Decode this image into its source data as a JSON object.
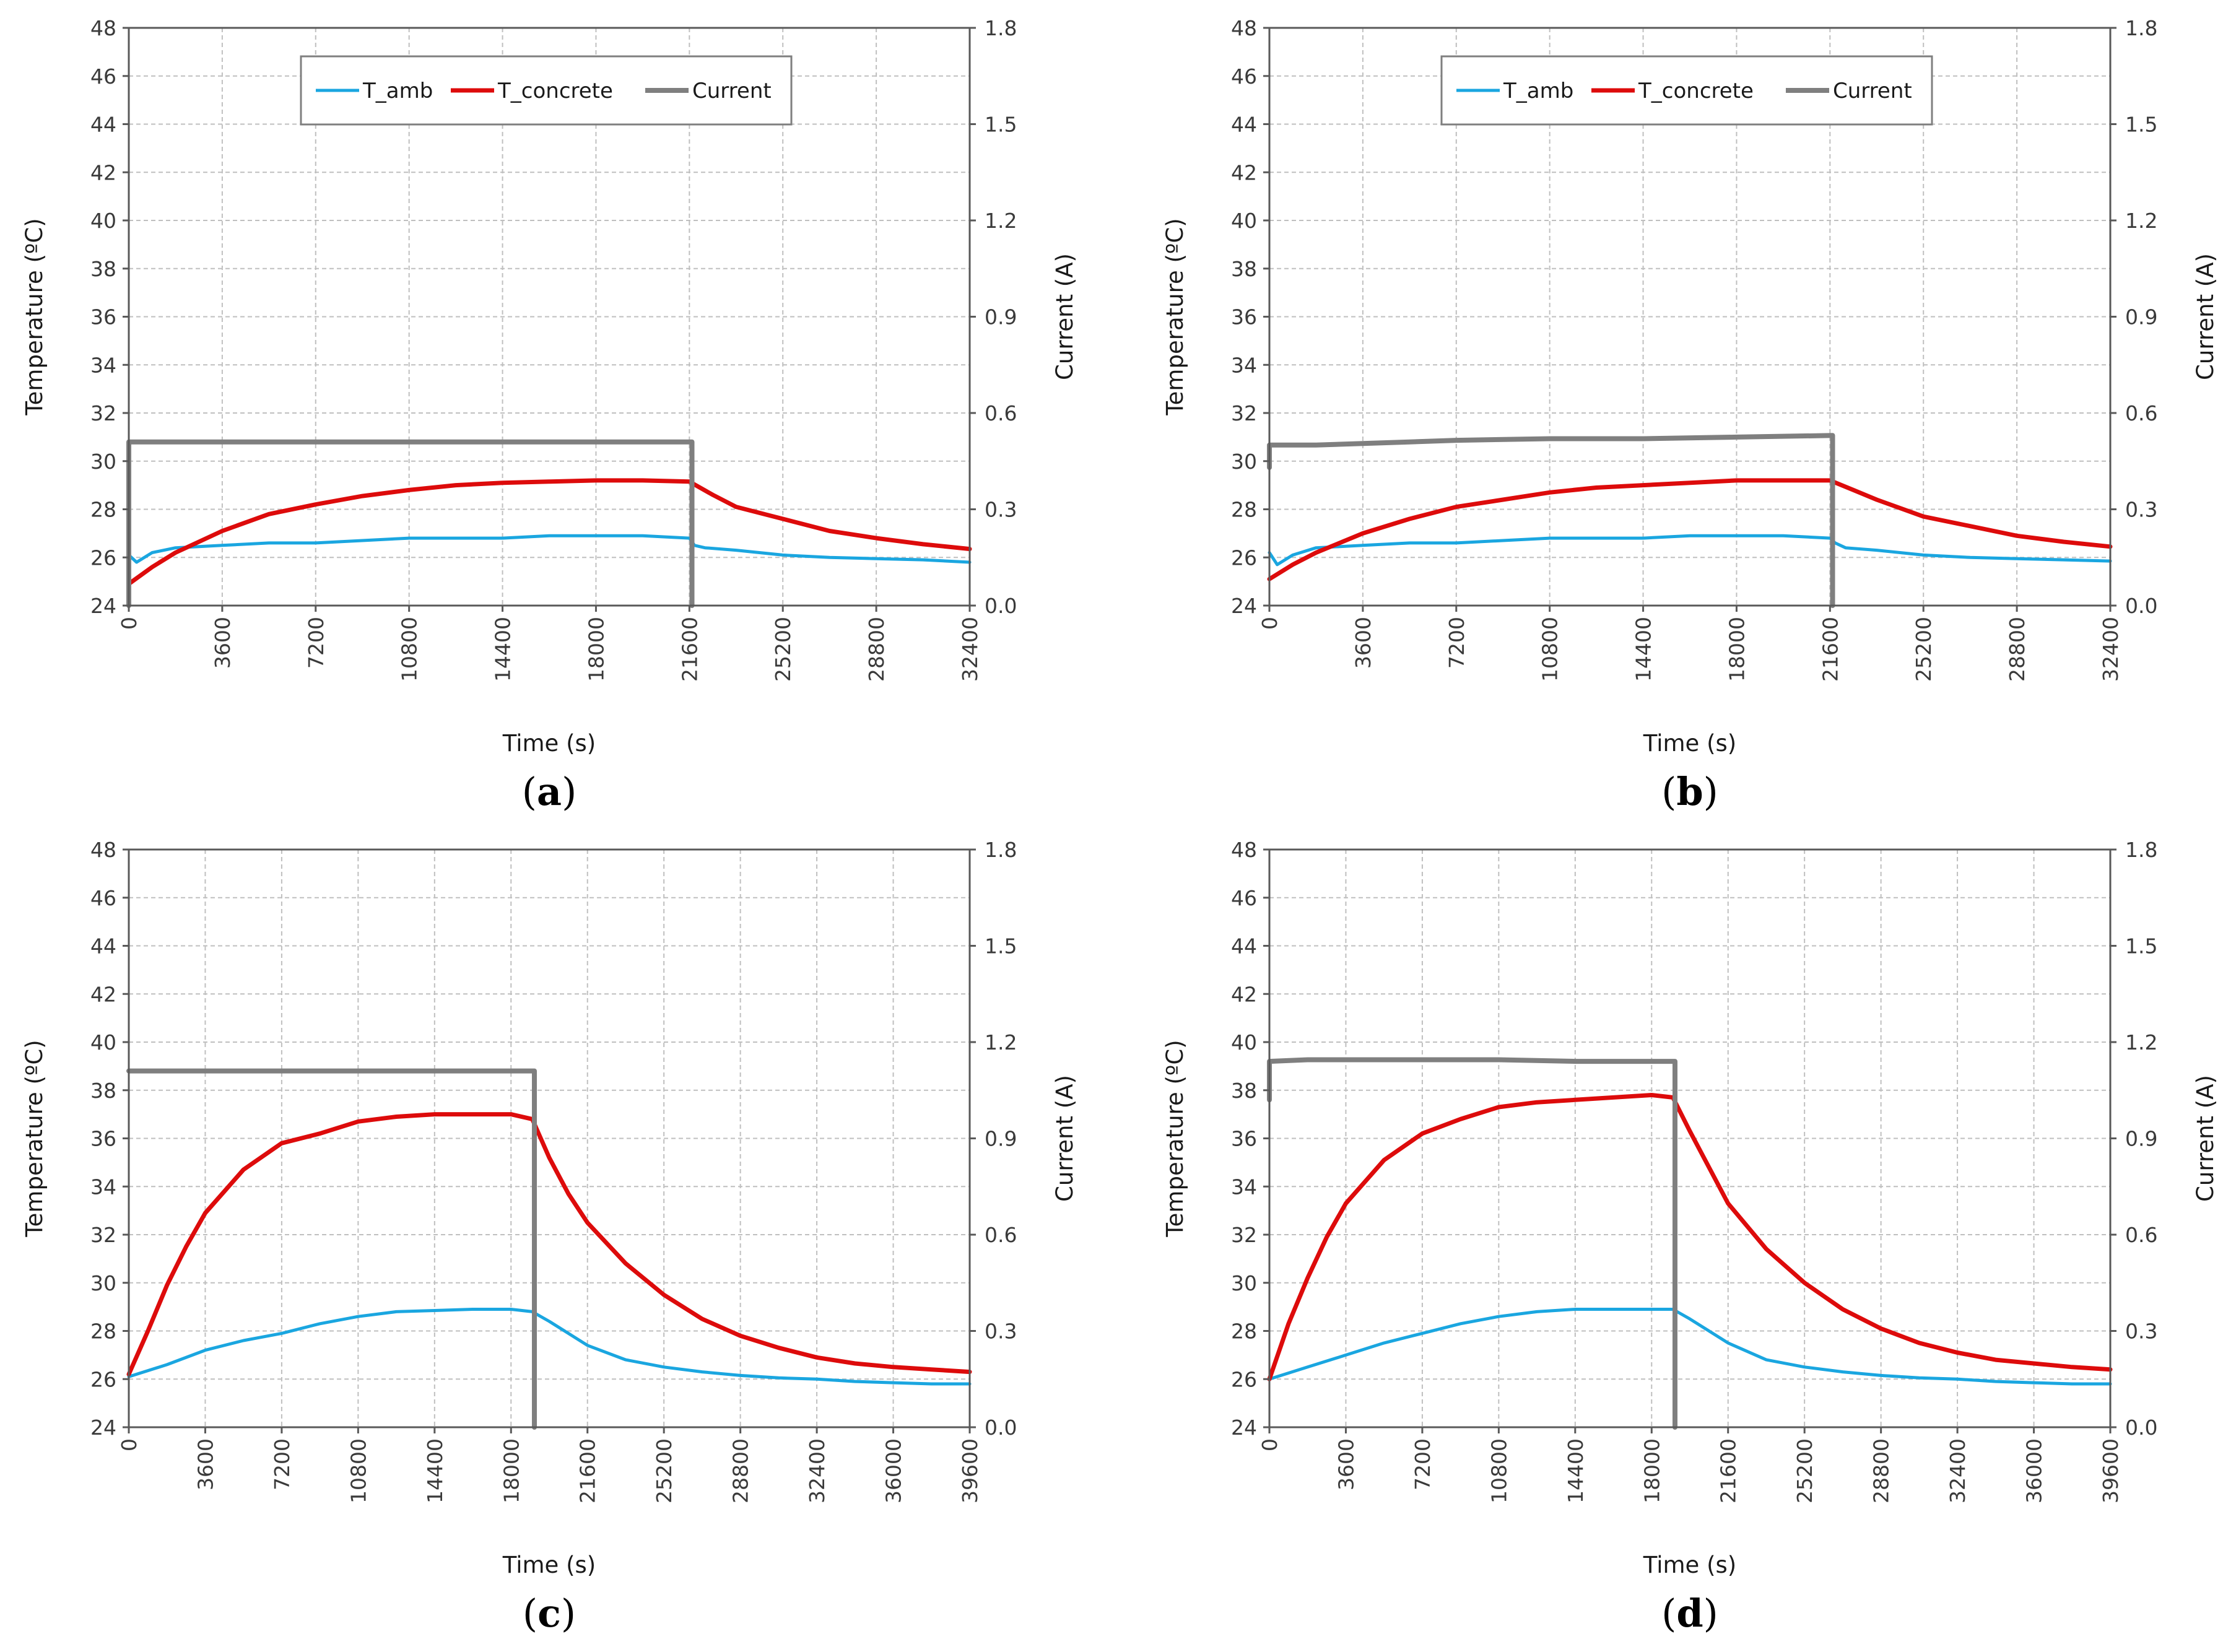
{
  "figure": {
    "colors": {
      "T_amb": "#1aa6e0",
      "T_concrete": "#dd0b0b",
      "Current": "#7f7f7f",
      "grid": "#bfbfbf",
      "axis": "#595959"
    }
  },
  "chart_data": [
    {
      "id": "a",
      "type": "line",
      "caption": {
        "open": "(",
        "letter": "a",
        "close": ")"
      },
      "xlabel": "Time (s)",
      "ylabel": "Temperature (ºC)",
      "y2label": "Current (A)",
      "xlim": [
        0,
        32400
      ],
      "xticks": [
        0,
        3600,
        7200,
        10800,
        14400,
        18000,
        21600,
        25200,
        28800,
        32400
      ],
      "xtick_labels": [
        "0",
        "3600",
        "7200",
        "10800",
        "14400",
        "18000",
        "21600",
        "25200",
        "28800",
        "32400"
      ],
      "ylim": [
        24,
        48
      ],
      "yticks": [
        24,
        26,
        28,
        30,
        32,
        34,
        36,
        38,
        40,
        42,
        44,
        46,
        48
      ],
      "ytick_labels": [
        "24",
        "26",
        "28",
        "30",
        "32",
        "34",
        "36",
        "38",
        "40",
        "42",
        "44",
        "46",
        "48"
      ],
      "y2lim": [
        0,
        1.8
      ],
      "y2ticks": [
        0,
        0.3,
        0.6,
        0.9,
        1.2,
        1.5,
        1.8
      ],
      "y2tick_labels": [
        "0.0",
        "0.3",
        "0.6",
        "0.9",
        "1.2",
        "1.5",
        "1.8"
      ],
      "grid": true,
      "legend": {
        "position": "top",
        "entries": [
          "T_amb",
          "T_concrete",
          "Current"
        ]
      },
      "series": [
        {
          "name": "T_amb",
          "axis": "left",
          "x": [
            0,
            300,
            900,
            1800,
            3600,
            5400,
            7200,
            9000,
            10800,
            12600,
            14400,
            16200,
            18000,
            19800,
            21600,
            21800,
            22200,
            23400,
            25200,
            27000,
            28800,
            30600,
            32400
          ],
          "y": [
            26.1,
            25.8,
            26.2,
            26.4,
            26.5,
            26.6,
            26.6,
            26.7,
            26.8,
            26.8,
            26.8,
            26.9,
            26.9,
            26.9,
            26.8,
            26.5,
            26.4,
            26.3,
            26.1,
            26.0,
            25.95,
            25.9,
            25.8
          ]
        },
        {
          "name": "T_concrete",
          "axis": "left",
          "x": [
            0,
            900,
            1800,
            3600,
            5400,
            7200,
            9000,
            10800,
            12600,
            14400,
            16200,
            18000,
            19800,
            21600,
            22500,
            23400,
            25200,
            27000,
            28800,
            30600,
            32400
          ],
          "y": [
            24.9,
            25.6,
            26.2,
            27.1,
            27.8,
            28.2,
            28.55,
            28.8,
            29.0,
            29.1,
            29.15,
            29.2,
            29.2,
            29.15,
            28.6,
            28.1,
            27.6,
            27.1,
            26.8,
            26.55,
            26.35
          ]
        },
        {
          "name": "Current",
          "axis": "right",
          "x": [
            0,
            0,
            3600,
            7200,
            10800,
            14400,
            18000,
            21700,
            21700
          ],
          "y": [
            0,
            0.51,
            0.51,
            0.51,
            0.51,
            0.51,
            0.51,
            0.51,
            0
          ]
        }
      ]
    },
    {
      "id": "b",
      "type": "line",
      "caption": {
        "open": "(",
        "letter": "b",
        "close": ")"
      },
      "xlabel": "Time (s)",
      "ylabel": "Temperature (ºC)",
      "y2label": "Current (A)",
      "xlim": [
        0,
        32400
      ],
      "xticks": [
        0,
        3600,
        7200,
        10800,
        14400,
        18000,
        21600,
        25200,
        28800,
        32400
      ],
      "xtick_labels": [
        "0",
        "3600",
        "7200",
        "10800",
        "14400",
        "18000",
        "21600",
        "25200",
        "28800",
        "32400"
      ],
      "ylim": [
        24,
        48
      ],
      "yticks": [
        24,
        26,
        28,
        30,
        32,
        34,
        36,
        38,
        40,
        42,
        44,
        46,
        48
      ],
      "ytick_labels": [
        "24",
        "26",
        "28",
        "30",
        "32",
        "34",
        "36",
        "38",
        "40",
        "42",
        "44",
        "46",
        "48"
      ],
      "y2lim": [
        0,
        1.8
      ],
      "y2ticks": [
        0,
        0.3,
        0.6,
        0.9,
        1.2,
        1.5,
        1.8
      ],
      "y2tick_labels": [
        "0.0",
        "0.3",
        "0.6",
        "0.9",
        "1.2",
        "1.5",
        "1.8"
      ],
      "grid": true,
      "legend": {
        "position": "top",
        "entries": [
          "T_amb",
          "T_concrete",
          "Current"
        ]
      },
      "series": [
        {
          "name": "T_amb",
          "axis": "left",
          "x": [
            0,
            300,
            900,
            1800,
            3600,
            5400,
            7200,
            9000,
            10800,
            12600,
            14400,
            16200,
            18000,
            19800,
            21600,
            21800,
            22200,
            23400,
            25200,
            27000,
            28800,
            30600,
            32400
          ],
          "y": [
            26.2,
            25.7,
            26.1,
            26.4,
            26.5,
            26.6,
            26.6,
            26.7,
            26.8,
            26.8,
            26.8,
            26.9,
            26.9,
            26.9,
            26.8,
            26.6,
            26.4,
            26.3,
            26.1,
            26.0,
            25.95,
            25.9,
            25.85
          ]
        },
        {
          "name": "T_concrete",
          "axis": "left",
          "x": [
            0,
            900,
            1800,
            3600,
            5400,
            7200,
            9000,
            10800,
            12600,
            14400,
            16200,
            18000,
            19800,
            21600,
            22500,
            23400,
            25200,
            27000,
            28800,
            30600,
            32400
          ],
          "y": [
            25.1,
            25.7,
            26.2,
            27.0,
            27.6,
            28.1,
            28.4,
            28.7,
            28.9,
            29.0,
            29.1,
            29.2,
            29.2,
            29.2,
            28.8,
            28.4,
            27.7,
            27.3,
            26.9,
            26.65,
            26.45
          ]
        },
        {
          "name": "Current",
          "axis": "right",
          "x": [
            0,
            0,
            1800,
            3600,
            5400,
            7200,
            10800,
            14400,
            18000,
            21700,
            21700
          ],
          "y": [
            0.43,
            0.5,
            0.5,
            0.505,
            0.51,
            0.515,
            0.52,
            0.52,
            0.525,
            0.53,
            0
          ]
        }
      ]
    },
    {
      "id": "c",
      "type": "line",
      "caption": {
        "open": "(",
        "letter": "c",
        "close": ")"
      },
      "xlabel": "Time (s)",
      "ylabel": "Temperature (ºC)",
      "y2label": "Current (A)",
      "xlim": [
        0,
        39600
      ],
      "xticks": [
        0,
        3600,
        7200,
        10800,
        14400,
        18000,
        21600,
        25200,
        28800,
        32400,
        36000,
        39600
      ],
      "xtick_labels": [
        "0",
        "3600",
        "7200",
        "10800",
        "14400",
        "18000",
        "21600",
        "25200",
        "28800",
        "32400",
        "36000",
        "39600"
      ],
      "ylim": [
        24,
        48
      ],
      "yticks": [
        24,
        26,
        28,
        30,
        32,
        34,
        36,
        38,
        40,
        42,
        44,
        46,
        48
      ],
      "ytick_labels": [
        "24",
        "26",
        "28",
        "30",
        "32",
        "34",
        "36",
        "38",
        "40",
        "42",
        "44",
        "46",
        "48"
      ],
      "y2lim": [
        0,
        1.8
      ],
      "y2ticks": [
        0,
        0.3,
        0.6,
        0.9,
        1.2,
        1.5,
        1.8
      ],
      "y2tick_labels": [
        "0.0",
        "0.3",
        "0.6",
        "0.9",
        "1.2",
        "1.5",
        "1.8"
      ],
      "grid": true,
      "series": [
        {
          "name": "T_amb",
          "axis": "left",
          "x": [
            0,
            1800,
            3600,
            5400,
            7200,
            9000,
            10800,
            12600,
            14400,
            16200,
            18000,
            19000,
            19800,
            20700,
            21600,
            23400,
            25200,
            27000,
            28800,
            30600,
            32400,
            34200,
            36000,
            37800,
            39600
          ],
          "y": [
            26.1,
            26.6,
            27.2,
            27.6,
            27.9,
            28.3,
            28.6,
            28.8,
            28.85,
            28.9,
            28.9,
            28.8,
            28.4,
            27.9,
            27.4,
            26.8,
            26.5,
            26.3,
            26.15,
            26.05,
            26.0,
            25.9,
            25.85,
            25.8,
            25.8
          ]
        },
        {
          "name": "T_concrete",
          "axis": "left",
          "x": [
            0,
            900,
            1800,
            2700,
            3600,
            5400,
            7200,
            9000,
            10800,
            12600,
            14400,
            16200,
            18000,
            19000,
            19800,
            20700,
            21600,
            23400,
            25200,
            27000,
            28800,
            30600,
            32400,
            34200,
            36000,
            37800,
            39600
          ],
          "y": [
            26.2,
            28.0,
            29.9,
            31.5,
            32.9,
            34.7,
            35.8,
            36.2,
            36.7,
            36.9,
            37.0,
            37.0,
            37.0,
            36.8,
            35.2,
            33.7,
            32.5,
            30.8,
            29.5,
            28.5,
            27.8,
            27.3,
            26.9,
            26.65,
            26.5,
            26.4,
            26.3
          ]
        },
        {
          "name": "Current",
          "axis": "right",
          "x": [
            0,
            3600,
            7200,
            10800,
            14400,
            18000,
            19100,
            19100
          ],
          "y": [
            1.11,
            1.11,
            1.11,
            1.11,
            1.11,
            1.11,
            1.11,
            0
          ]
        }
      ]
    },
    {
      "id": "d",
      "type": "line",
      "caption": {
        "open": "(",
        "letter": "d",
        "close": ")"
      },
      "xlabel": "Time (s)",
      "ylabel": "Temperature (ºC)",
      "y2label": "Current (A)",
      "xlim": [
        0,
        39600
      ],
      "xticks": [
        0,
        3600,
        7200,
        10800,
        14400,
        18000,
        21600,
        25200,
        28800,
        32400,
        36000,
        39600
      ],
      "xtick_labels": [
        "0",
        "3600",
        "7200",
        "10800",
        "14400",
        "18000",
        "21600",
        "25200",
        "28800",
        "32400",
        "36000",
        "39600"
      ],
      "ylim": [
        24,
        48
      ],
      "yticks": [
        24,
        26,
        28,
        30,
        32,
        34,
        36,
        38,
        40,
        42,
        44,
        46,
        48
      ],
      "ytick_labels": [
        "24",
        "26",
        "28",
        "30",
        "32",
        "34",
        "36",
        "38",
        "40",
        "42",
        "44",
        "46",
        "48"
      ],
      "y2lim": [
        0,
        1.8
      ],
      "y2ticks": [
        0,
        0.3,
        0.6,
        0.9,
        1.2,
        1.5,
        1.8
      ],
      "y2tick_labels": [
        "0.0",
        "0.3",
        "0.6",
        "0.9",
        "1.2",
        "1.5",
        "1.8"
      ],
      "grid": true,
      "series": [
        {
          "name": "T_amb",
          "axis": "left",
          "x": [
            0,
            1800,
            3600,
            5400,
            7200,
            9000,
            10800,
            12600,
            14400,
            16200,
            18000,
            19000,
            19800,
            20700,
            21600,
            23400,
            25200,
            27000,
            28800,
            30600,
            32400,
            34200,
            36000,
            37800,
            39600
          ],
          "y": [
            26.0,
            26.5,
            27.0,
            27.5,
            27.9,
            28.3,
            28.6,
            28.8,
            28.9,
            28.9,
            28.9,
            28.9,
            28.5,
            28.0,
            27.5,
            26.8,
            26.5,
            26.3,
            26.15,
            26.05,
            26.0,
            25.9,
            25.85,
            25.8,
            25.8
          ]
        },
        {
          "name": "T_concrete",
          "axis": "left",
          "x": [
            0,
            900,
            1800,
            2700,
            3600,
            5400,
            7200,
            9000,
            10800,
            12600,
            14400,
            16200,
            18000,
            19000,
            19800,
            20700,
            21600,
            23400,
            25200,
            27000,
            28800,
            30600,
            32400,
            34200,
            36000,
            37800,
            39600
          ],
          "y": [
            26.0,
            28.3,
            30.2,
            31.9,
            33.3,
            35.1,
            36.2,
            36.8,
            37.3,
            37.5,
            37.6,
            37.7,
            37.8,
            37.7,
            36.3,
            34.8,
            33.3,
            31.4,
            30.0,
            28.9,
            28.1,
            27.5,
            27.1,
            26.8,
            26.65,
            26.5,
            26.4
          ]
        },
        {
          "name": "Current",
          "axis": "right",
          "x": [
            0,
            0,
            1800,
            3600,
            7200,
            10800,
            14400,
            18000,
            19100,
            19100
          ],
          "y": [
            1.02,
            1.14,
            1.145,
            1.145,
            1.145,
            1.145,
            1.14,
            1.14,
            1.14,
            0
          ]
        }
      ]
    }
  ]
}
